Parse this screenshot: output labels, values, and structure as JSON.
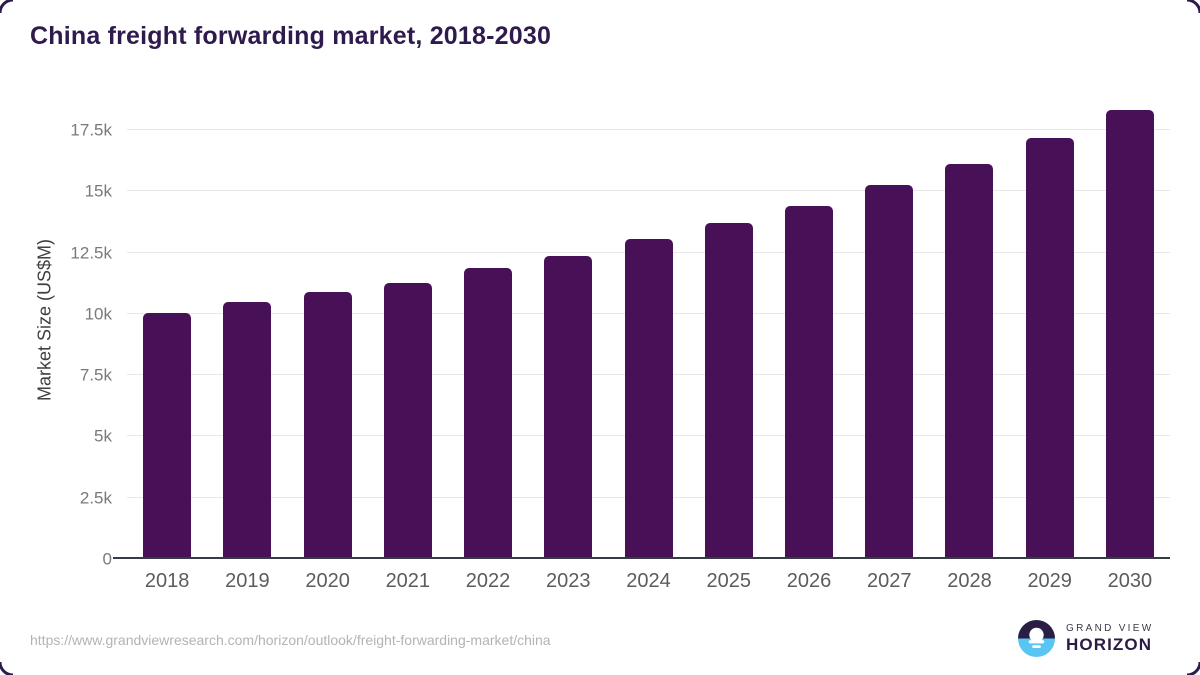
{
  "page": {
    "title": "China freight forwarding market, 2018-2030"
  },
  "chart_data": {
    "type": "bar",
    "title": "China freight forwarding market, 2018-2030",
    "categories": [
      "2018",
      "2019",
      "2020",
      "2021",
      "2022",
      "2023",
      "2024",
      "2025",
      "2026",
      "2027",
      "2028",
      "2029",
      "2030"
    ],
    "values": [
      10050,
      10500,
      10900,
      11250,
      11850,
      12350,
      13050,
      13700,
      14400,
      15250,
      16100,
      17150,
      18300
    ],
    "xlabel": "",
    "ylabel": "Market Size (US$M)",
    "ylim": [
      0,
      18760
    ],
    "yticks": [
      0,
      2500,
      5000,
      7500,
      10000,
      12500,
      15000,
      17500
    ],
    "ytick_labels": [
      "0",
      "2.5k",
      "5k",
      "7.5k",
      "10k",
      "12.5k",
      "15k",
      "17.5k"
    ],
    "grid": true,
    "legend": "none",
    "bar_color": "#481157"
  },
  "footer": {
    "source_url": "https://www.grandviewresearch.com/horizon/outlook/freight-forwarding-market/china",
    "logo": {
      "name_top": "GRAND VIEW",
      "name_bottom": "HORIZON"
    }
  },
  "colors": {
    "background": "#ffffff",
    "bar": "#481157",
    "title": "#2f1a4d",
    "axis_line": "#363c45",
    "gridline": "#e8e8e8",
    "ytick_label": "#7a7a7a",
    "xtick_label": "#5c5c5c",
    "axis_title": "#3f3f3f",
    "source_url": "#b3b3b8",
    "corner_marks": "#2e1d4c",
    "logo_navy": "#3a3a4a",
    "logo_purple": "#2b1a45",
    "logo_blue": "#58c5f2",
    "logo_dark_half": "#2a1e45"
  }
}
